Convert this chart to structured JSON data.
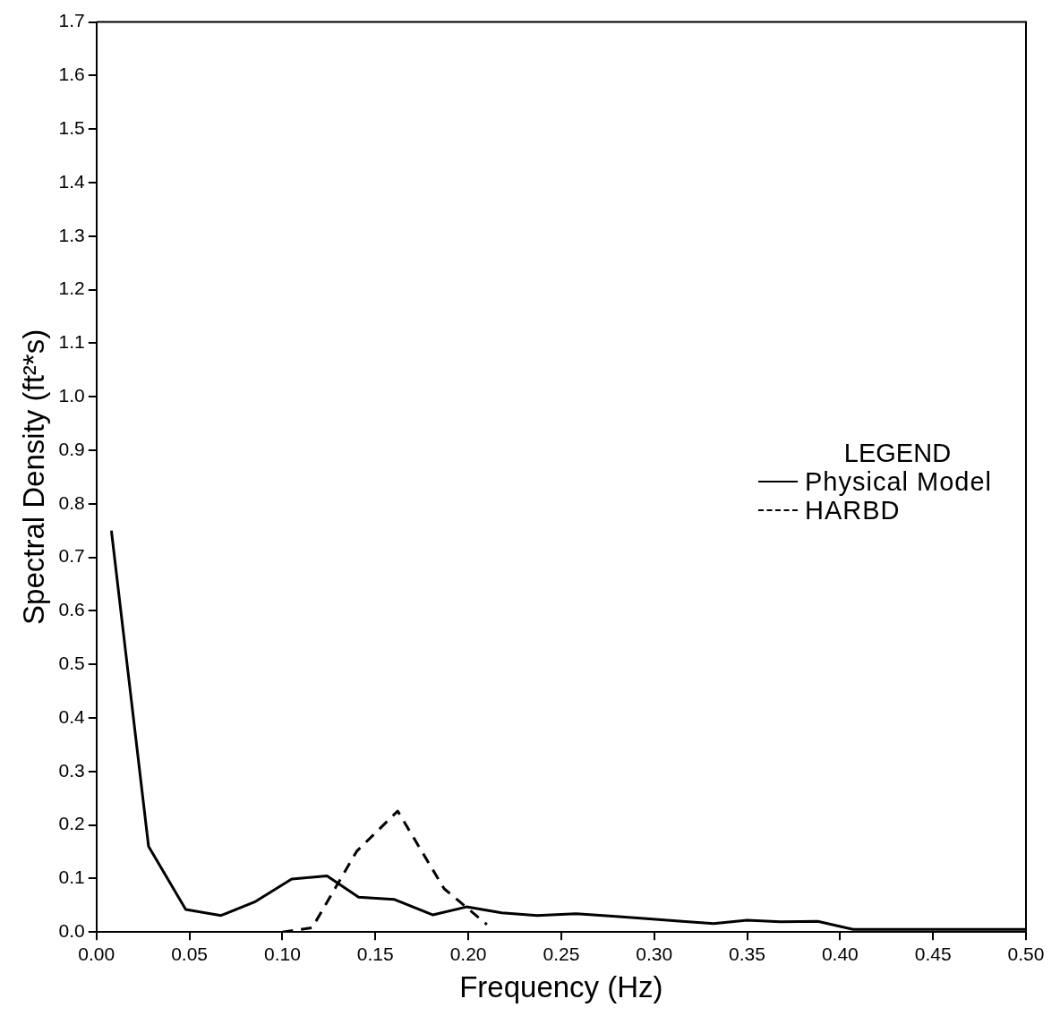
{
  "chart_data": {
    "type": "line",
    "xlabel": "Frequency (Hz)",
    "ylabel": "Spectral Density (ft²*s)",
    "legend_title": "LEGEND",
    "legend": "right",
    "xlim": [
      0,
      0.5
    ],
    "ylim": [
      0,
      1.7
    ],
    "xticks": [
      {
        "value": 0,
        "label": "0.00"
      },
      {
        "value": 0.05,
        "label": "0.05"
      },
      {
        "value": 0.1,
        "label": "0.10"
      },
      {
        "value": 0.15,
        "label": "0.15"
      },
      {
        "value": 0.2,
        "label": "0.20"
      },
      {
        "value": 0.25,
        "label": "0.25"
      },
      {
        "value": 0.3,
        "label": "0.30"
      },
      {
        "value": 0.35,
        "label": "0.35"
      },
      {
        "value": 0.4,
        "label": "0.40"
      },
      {
        "value": 0.45,
        "label": "0.45"
      },
      {
        "value": 0.5,
        "label": "0.50"
      }
    ],
    "yticks": [
      {
        "value": 0,
        "label": "0.0"
      },
      {
        "value": 0.1,
        "label": "0.1"
      },
      {
        "value": 0.2,
        "label": "0.2"
      },
      {
        "value": 0.3,
        "label": "0.3"
      },
      {
        "value": 0.4,
        "label": "0.4"
      },
      {
        "value": 0.5,
        "label": "0.5"
      },
      {
        "value": 0.6,
        "label": "0.6"
      },
      {
        "value": 0.7,
        "label": "0.7"
      },
      {
        "value": 0.8,
        "label": "0.8"
      },
      {
        "value": 0.9,
        "label": "0.9"
      },
      {
        "value": 1.0,
        "label": "1.0"
      },
      {
        "value": 1.1,
        "label": "1.1"
      },
      {
        "value": 1.2,
        "label": "1.2"
      },
      {
        "value": 1.3,
        "label": "1.3"
      },
      {
        "value": 1.4,
        "label": "1.4"
      },
      {
        "value": 1.5,
        "label": "1.5"
      },
      {
        "value": 1.6,
        "label": "1.6"
      },
      {
        "value": 1.7,
        "label": "1.7"
      }
    ],
    "grid": false,
    "marker": "none",
    "series": [
      {
        "name": "Physical Model",
        "color": "#000000",
        "line_style": "solid",
        "x": [
          0.008,
          0.028,
          0.048,
          0.067,
          0.085,
          0.105,
          0.124,
          0.141,
          0.16,
          0.181,
          0.199,
          0.218,
          0.237,
          0.258,
          0.276,
          0.296,
          0.315,
          0.332,
          0.35,
          0.368,
          0.388,
          0.407,
          0.427,
          0.45,
          0.5
        ],
        "values": [
          0.75,
          0.16,
          0.042,
          0.031,
          0.056,
          0.099,
          0.105,
          0.065,
          0.061,
          0.032,
          0.047,
          0.036,
          0.031,
          0.034,
          0.03,
          0.025,
          0.02,
          0.016,
          0.022,
          0.019,
          0.02,
          0.005,
          0.005,
          0.005,
          0.005
        ]
      },
      {
        "name": "HARBD",
        "color": "#000000",
        "line_style": "dashed",
        "x": [
          0.1,
          0.116,
          0.14,
          0.162,
          0.187,
          0.21
        ],
        "values": [
          0,
          0.008,
          0.151,
          0.226,
          0.081,
          0.014
        ]
      }
    ]
  }
}
